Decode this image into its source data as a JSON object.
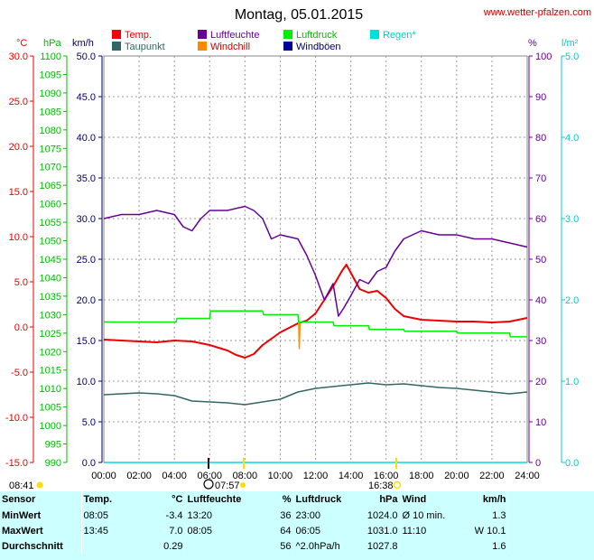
{
  "header": {
    "title": "Montag, 05.01.2015",
    "site": "www.wetter-pfalzen.com"
  },
  "axis_units": {
    "temp": "°C",
    "pressure": "hPa",
    "wind": "km/h",
    "humidity": "%",
    "rain": "l/m²"
  },
  "sun": {
    "sunrise": "08:41",
    "sunset": "16:38",
    "moon_time": "07:57"
  },
  "colors": {
    "temp": "#ee0000",
    "dewpoint": "#336666",
    "humidity": "#660099",
    "windchill": "#ff8800",
    "pressure": "#00ee00",
    "gusts": "#000099",
    "rain": "#00dddd",
    "temp_axis": "#ee0000",
    "pressure_axis": "#00bb00",
    "wind_axis": "#000066",
    "humidity_axis": "#660099",
    "rain_axis": "#00cccc",
    "grid": "#999999"
  },
  "stats": {
    "headers": {
      "sensor": "Sensor",
      "temp": "Temp.",
      "temp_unit": "°C",
      "hum": "Luftfeuchte",
      "hum_unit": "%",
      "press": "Luftdruck",
      "press_unit": "hPa",
      "wind": "Wind",
      "wind_unit": "km/h"
    },
    "rows": [
      {
        "label": "MinWert",
        "temp_time": "08:05",
        "temp": "-3.4",
        "hum_time": "13:20",
        "hum": "36",
        "press_time": "23:00",
        "press": "1024.0",
        "wind_time": "Ø 10 min.",
        "wind": "1.3"
      },
      {
        "label": "MaxWert",
        "temp_time": "13:45",
        "temp": "7.0",
        "hum_time": "08:05",
        "hum": "64",
        "press_time": "06:05",
        "press": "1031.0",
        "wind_time": "11:10",
        "wind": "W 10.1"
      },
      {
        "label": "Durchschnitt",
        "temp_time": "",
        "temp": "0.29",
        "hum_time": "",
        "hum": "56",
        "press_time": "^2.0hPa/h",
        "press": "1027.8",
        "wind_time": "",
        "wind": "1.6"
      }
    ]
  },
  "chart_data": {
    "type": "line",
    "title": "Montag, 05.01.2015",
    "x_ticks": [
      "00:00",
      "02:00",
      "04:00",
      "06:00",
      "08:00",
      "10:00",
      "12:00",
      "14:00",
      "16:00",
      "18:00",
      "20:00",
      "22:00",
      "24:00"
    ],
    "xlim": [
      0,
      24
    ],
    "axes": {
      "temp": {
        "unit": "°C",
        "range": [
          -15,
          30
        ],
        "ticks": [
          "30.0",
          "25.0",
          "20.0",
          "15.0",
          "10.0",
          "5.0",
          "0.0",
          "-5.0",
          "-10.0",
          "-15.0"
        ]
      },
      "pressure": {
        "unit": "hPa",
        "range": [
          990,
          1100
        ],
        "ticks": [
          "1100",
          "1095",
          "1090",
          "1085",
          "1080",
          "1075",
          "1070",
          "1065",
          "1060",
          "1055",
          "1050",
          "1045",
          "1040",
          "1035",
          "1030",
          "1025",
          "1020",
          "1015",
          "1010",
          "1005",
          "1000",
          "995",
          "990"
        ]
      },
      "wind": {
        "unit": "km/h",
        "range": [
          0,
          50
        ],
        "ticks": [
          "50.0",
          "45.0",
          "40.0",
          "35.0",
          "30.0",
          "25.0",
          "20.0",
          "15.0",
          "10.0",
          "5.0",
          "0.0"
        ]
      },
      "humidity": {
        "unit": "%",
        "range": [
          0,
          100
        ],
        "ticks": [
          "100",
          "90",
          "80",
          "70",
          "60",
          "50",
          "40",
          "30",
          "20",
          "10",
          "0"
        ]
      },
      "rain": {
        "unit": "l/m²",
        "range": [
          0,
          5
        ],
        "ticks": [
          "5.0",
          "4.0",
          "3.0",
          "2.0",
          "1.0",
          "0.0"
        ]
      }
    },
    "legend": [
      "Temp.",
      "Taupunkt",
      "Luftfeuchte",
      "Windchill",
      "Luftdruck",
      "Windböen",
      "Regen*"
    ],
    "series": [
      {
        "name": "Temp.",
        "axis": "temp",
        "x": [
          0,
          1,
          2,
          3,
          4,
          5,
          6,
          7,
          7.5,
          8,
          8.5,
          9,
          10,
          11,
          11.5,
          12,
          12.5,
          13,
          13.5,
          13.75,
          14,
          14.5,
          15,
          15.5,
          16,
          16.5,
          17,
          18,
          19,
          20,
          21,
          22,
          23,
          24
        ],
        "y": [
          -1.4,
          -1.5,
          -1.6,
          -1.7,
          -1.5,
          -1.6,
          -2.0,
          -2.6,
          -3.1,
          -3.4,
          -3.0,
          -2.0,
          -0.6,
          0.4,
          0.7,
          1.5,
          3.0,
          4.5,
          6.2,
          6.9,
          6.0,
          4.2,
          3.8,
          4.0,
          3.2,
          2.0,
          1.2,
          0.8,
          0.7,
          0.6,
          0.6,
          0.5,
          0.6,
          1.0
        ]
      },
      {
        "name": "Taupunkt",
        "axis": "temp",
        "x": [
          0,
          1,
          2,
          3,
          4,
          5,
          6,
          7,
          8,
          9,
          10,
          11,
          12,
          13,
          14,
          15,
          16,
          17,
          18,
          19,
          20,
          21,
          22,
          23,
          24
        ],
        "y": [
          -7.5,
          -7.4,
          -7.3,
          -7.4,
          -7.6,
          -8.2,
          -8.3,
          -8.4,
          -8.6,
          -8.3,
          -8.0,
          -7.2,
          -6.8,
          -6.6,
          -6.4,
          -6.2,
          -6.4,
          -6.3,
          -6.5,
          -6.7,
          -6.8,
          -7.0,
          -7.2,
          -7.4,
          -7.2
        ]
      },
      {
        "name": "Luftfeuchte",
        "axis": "humidity",
        "x": [
          0,
          1,
          2,
          3,
          4,
          4.5,
          5,
          5.5,
          6,
          7,
          8,
          8.5,
          9,
          9.5,
          10,
          11,
          11.5,
          12,
          12.5,
          13,
          13.3,
          13.6,
          14,
          14.5,
          15,
          15.5,
          16,
          16.5,
          17,
          18,
          19,
          20,
          21,
          22,
          23,
          24
        ],
        "y": [
          60,
          61,
          61,
          62,
          61,
          58,
          57,
          60,
          62,
          62,
          63,
          62,
          60,
          55,
          56,
          55,
          51,
          46,
          40,
          44,
          36,
          38,
          41,
          45,
          44,
          47,
          48,
          52,
          55,
          57,
          56,
          56,
          55,
          55,
          54,
          53
        ]
      },
      {
        "name": "Luftdruck",
        "axis": "pressure",
        "x": [
          0,
          4.1,
          4.15,
          6,
          6.05,
          9,
          9.05,
          11,
          11.05,
          13,
          13.05,
          15,
          15.05,
          17,
          17.05,
          20,
          20.05,
          23,
          23.05,
          24
        ],
        "y": [
          1028,
          1028,
          1029,
          1029,
          1031,
          1031,
          1030,
          1030,
          1028,
          1028,
          1027,
          1027,
          1026,
          1026,
          1025.5,
          1025.5,
          1025,
          1025,
          1024,
          1024
        ]
      },
      {
        "name": "Windchill",
        "axis": "temp",
        "x": [
          11.05,
          11.08,
          11.12
        ],
        "y": [
          0.5,
          -2.4,
          0.5
        ]
      },
      {
        "name": "Windböen",
        "axis": "wind",
        "x": [],
        "y": []
      },
      {
        "name": "Regen*",
        "axis": "rain",
        "x": [
          0,
          24
        ],
        "y": [
          0,
          0
        ]
      }
    ]
  }
}
